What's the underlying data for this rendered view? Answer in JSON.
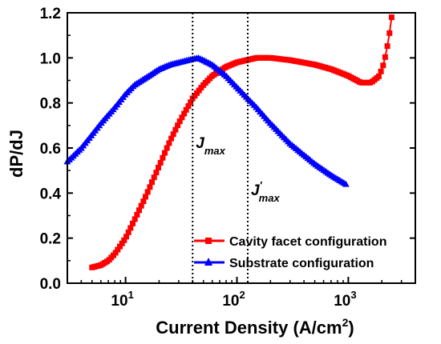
{
  "chart_data": {
    "type": "line",
    "xlabel_main": "Current Density (A/cm",
    "xlabel_sup": "2",
    "xlabel_end": ")",
    "ylabel": "dP/dJ",
    "xscale": "log",
    "xlim": [
      3,
      4000
    ],
    "ylim": [
      0,
      1.2
    ],
    "grid": false,
    "legend_position": "lower-right",
    "y_ticks": [
      {
        "value": 0.0,
        "label": "0.0"
      },
      {
        "value": 0.2,
        "label": "0.2"
      },
      {
        "value": 0.4,
        "label": "0.4"
      },
      {
        "value": 0.6,
        "label": "0.6"
      },
      {
        "value": 0.8,
        "label": "0.8"
      },
      {
        "value": 1.0,
        "label": "1.0"
      },
      {
        "value": 1.2,
        "label": "1.2"
      }
    ],
    "x_ticks": [
      {
        "value": 10,
        "base": "10",
        "exp": "1"
      },
      {
        "value": 100,
        "base": "10",
        "exp": "2"
      },
      {
        "value": 1000,
        "base": "10",
        "exp": "3"
      }
    ],
    "annotations": [
      {
        "main": "J",
        "sub": "max",
        "prime": "",
        "x": 40,
        "y": 0.6
      },
      {
        "main": "J",
        "sub": "max",
        "prime": "′",
        "x": 125,
        "y": 0.39
      }
    ],
    "vlines": [
      40,
      125
    ],
    "series": [
      {
        "name": "Cavity facet configuration",
        "color": "#ff0000",
        "marker": "square",
        "x": [
          5,
          6,
          7,
          8,
          10,
          12,
          15,
          20,
          25,
          30,
          40,
          50,
          60,
          80,
          100,
          150,
          200,
          300,
          500,
          700,
          1000,
          1300,
          1600,
          1900,
          2100,
          2300,
          2450
        ],
        "y": [
          0.07,
          0.08,
          0.1,
          0.13,
          0.2,
          0.28,
          0.38,
          0.52,
          0.63,
          0.71,
          0.82,
          0.88,
          0.92,
          0.96,
          0.98,
          1.0,
          1.0,
          0.99,
          0.97,
          0.95,
          0.92,
          0.89,
          0.89,
          0.92,
          0.98,
          1.08,
          1.18
        ]
      },
      {
        "name": "Substrate configuration",
        "color": "#0000ff",
        "marker": "triangle",
        "x": [
          3,
          4,
          5,
          6,
          8,
          10,
          12,
          15,
          20,
          25,
          30,
          40,
          45,
          50,
          60,
          80,
          100,
          150,
          200,
          300,
          500,
          700,
          950
        ],
        "y": [
          0.54,
          0.6,
          0.66,
          0.71,
          0.78,
          0.84,
          0.88,
          0.91,
          0.95,
          0.97,
          0.98,
          0.995,
          1.0,
          0.99,
          0.97,
          0.92,
          0.87,
          0.78,
          0.71,
          0.62,
          0.53,
          0.48,
          0.44
        ]
      }
    ]
  }
}
